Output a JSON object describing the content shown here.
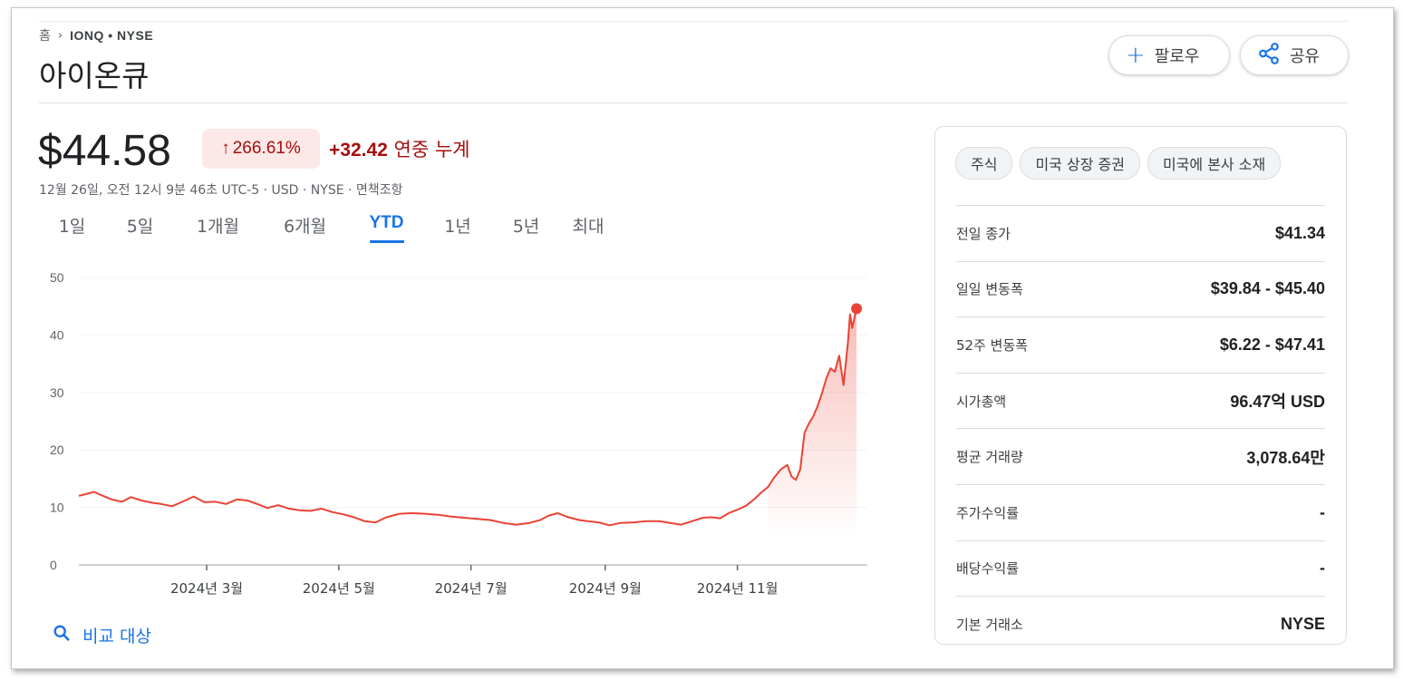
{
  "breadcrumb": {
    "home": "홈",
    "ticker": "IONQ • NYSE"
  },
  "title": "아이온큐",
  "buttons": {
    "follow": "팔로우",
    "share": "공유"
  },
  "quote": {
    "price": "$44.58",
    "percent": "266.61%",
    "change": "+32.42",
    "change_suffix": "연중 누계",
    "meta": "12월 26일, 오전 12시 9분 46초 UTC-5 · USD · NYSE · 면책조항",
    "trend_color": "#a50e0e"
  },
  "tabs": [
    "1일",
    "5일",
    "1개월",
    "6개월",
    "YTD",
    "1년",
    "5년",
    "최대"
  ],
  "active_tab": "YTD",
  "compare_label": "비교 대상",
  "chips": [
    "주식",
    "미국 상장 증권",
    "미국에 본사 소재"
  ],
  "stats": [
    {
      "label": "전일 종가",
      "value": "$41.34"
    },
    {
      "label": "일일 변동폭",
      "value": "$39.84 - $45.40"
    },
    {
      "label": "52주 변동폭",
      "value": "$6.22 - $47.41"
    },
    {
      "label": "시가총액",
      "value": "96.47억 USD"
    },
    {
      "label": "평균 거래량",
      "value": "3,078.64만"
    },
    {
      "label": "주가수익률",
      "value": "-"
    },
    {
      "label": "배당수익률",
      "value": "-"
    },
    {
      "label": "기본 거래소",
      "value": "NYSE"
    }
  ],
  "chart_data": {
    "type": "area",
    "color": "#ea4335",
    "ylim": [
      0,
      50
    ],
    "y_ticks": [
      0,
      10,
      20,
      30,
      40,
      50
    ],
    "x_ticks": [
      {
        "x": "2024-03-01",
        "label": "2024년 3월"
      },
      {
        "x": "2024-05-01",
        "label": "2024년 5월"
      },
      {
        "x": "2024-07-01",
        "label": "2024년 7월"
      },
      {
        "x": "2024-09-01",
        "label": "2024년 9월"
      },
      {
        "x": "2024-11-01",
        "label": "2024년 11월"
      }
    ],
    "xlim": [
      "2024-01-02",
      "2024-12-31"
    ],
    "points": [
      [
        "2024-01-02",
        12.0
      ],
      [
        "2024-01-05",
        12.3
      ],
      [
        "2024-01-09",
        12.7
      ],
      [
        "2024-01-12",
        12.2
      ],
      [
        "2024-01-17",
        11.4
      ],
      [
        "2024-01-22",
        11.0
      ],
      [
        "2024-01-26",
        11.8
      ],
      [
        "2024-01-31",
        11.2
      ],
      [
        "2024-02-05",
        10.8
      ],
      [
        "2024-02-09",
        10.6
      ],
      [
        "2024-02-14",
        10.2
      ],
      [
        "2024-02-20",
        11.2
      ],
      [
        "2024-02-24",
        11.9
      ],
      [
        "2024-02-29",
        10.9
      ],
      [
        "2024-03-05",
        11.0
      ],
      [
        "2024-03-10",
        10.6
      ],
      [
        "2024-03-15",
        11.4
      ],
      [
        "2024-03-20",
        11.2
      ],
      [
        "2024-03-25",
        10.5
      ],
      [
        "2024-03-29",
        9.9
      ],
      [
        "2024-04-03",
        10.4
      ],
      [
        "2024-04-08",
        9.8
      ],
      [
        "2024-04-13",
        9.5
      ],
      [
        "2024-04-18",
        9.4
      ],
      [
        "2024-04-23",
        9.8
      ],
      [
        "2024-04-28",
        9.2
      ],
      [
        "2024-05-03",
        8.8
      ],
      [
        "2024-05-08",
        8.3
      ],
      [
        "2024-05-13",
        7.6
      ],
      [
        "2024-05-18",
        7.4
      ],
      [
        "2024-05-23",
        8.3
      ],
      [
        "2024-05-29",
        8.9
      ],
      [
        "2024-06-04",
        9.0
      ],
      [
        "2024-06-10",
        8.9
      ],
      [
        "2024-06-16",
        8.7
      ],
      [
        "2024-06-22",
        8.4
      ],
      [
        "2024-06-28",
        8.2
      ],
      [
        "2024-07-04",
        8.0
      ],
      [
        "2024-07-10",
        7.8
      ],
      [
        "2024-07-16",
        7.3
      ],
      [
        "2024-07-22",
        7.0
      ],
      [
        "2024-07-28",
        7.3
      ],
      [
        "2024-08-02",
        7.8
      ],
      [
        "2024-08-06",
        8.6
      ],
      [
        "2024-08-10",
        9.0
      ],
      [
        "2024-08-15",
        8.3
      ],
      [
        "2024-08-20",
        7.8
      ],
      [
        "2024-08-24",
        7.6
      ],
      [
        "2024-08-29",
        7.4
      ],
      [
        "2024-09-03",
        6.9
      ],
      [
        "2024-09-08",
        7.3
      ],
      [
        "2024-09-14",
        7.4
      ],
      [
        "2024-09-20",
        7.6
      ],
      [
        "2024-09-26",
        7.6
      ],
      [
        "2024-10-01",
        7.3
      ],
      [
        "2024-10-06",
        7.0
      ],
      [
        "2024-10-11",
        7.6
      ],
      [
        "2024-10-16",
        8.2
      ],
      [
        "2024-10-20",
        8.3
      ],
      [
        "2024-10-24",
        8.1
      ],
      [
        "2024-10-28",
        9.0
      ],
      [
        "2024-11-01",
        9.6
      ],
      [
        "2024-11-05",
        10.3
      ],
      [
        "2024-11-09",
        11.5
      ],
      [
        "2024-11-12",
        12.6
      ],
      [
        "2024-11-15",
        13.5
      ],
      [
        "2024-11-18",
        15.2
      ],
      [
        "2024-11-21",
        16.6
      ],
      [
        "2024-11-24",
        17.4
      ],
      [
        "2024-11-26",
        15.4
      ],
      [
        "2024-11-28",
        14.8
      ],
      [
        "2024-11-30",
        16.6
      ],
      [
        "2024-12-02",
        23.0
      ],
      [
        "2024-12-04",
        24.6
      ],
      [
        "2024-12-06",
        25.8
      ],
      [
        "2024-12-08",
        27.6
      ],
      [
        "2024-12-10",
        29.8
      ],
      [
        "2024-12-12",
        32.4
      ],
      [
        "2024-12-14",
        34.2
      ],
      [
        "2024-12-16",
        33.6
      ],
      [
        "2024-12-18",
        36.4
      ],
      [
        "2024-12-20",
        31.3
      ],
      [
        "2024-12-22",
        38.6
      ],
      [
        "2024-12-23",
        43.6
      ],
      [
        "2024-12-24",
        41.2
      ],
      [
        "2024-12-26",
        44.58
      ]
    ],
    "last_value": 44.58
  }
}
